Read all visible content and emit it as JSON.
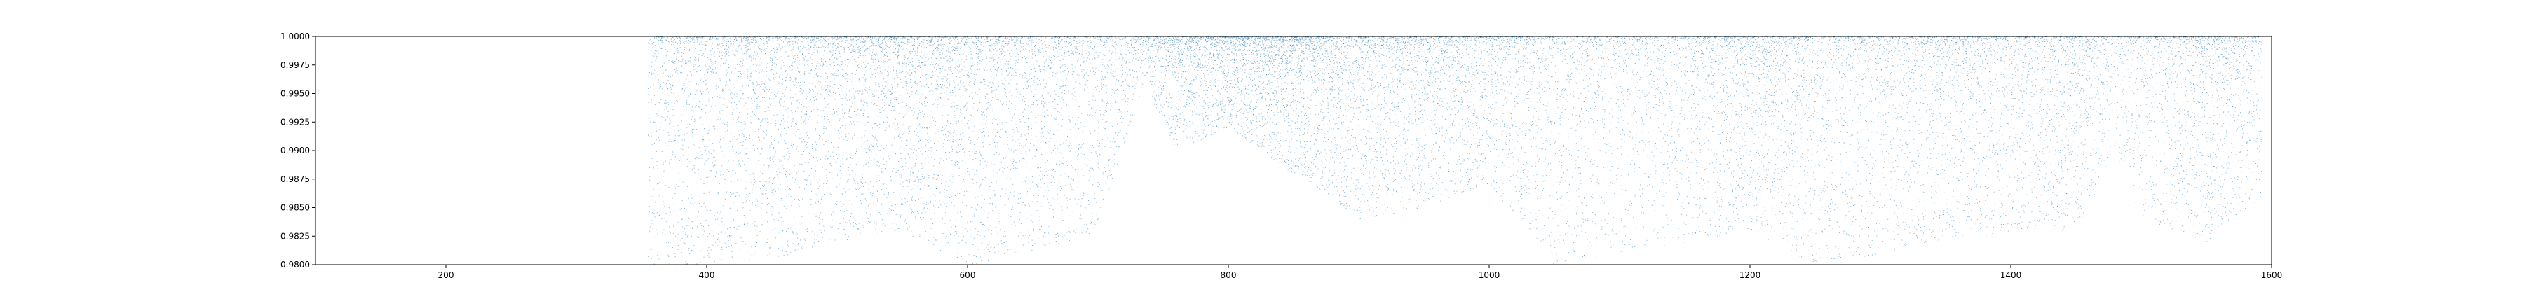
{
  "chart_data": {
    "type": "scatter",
    "title": "",
    "xlabel": "",
    "ylabel": "",
    "xlim": [
      100,
      1600
    ],
    "ylim": [
      0.98,
      1.0
    ],
    "x_ticks": [
      200,
      400,
      600,
      800,
      1000,
      1200,
      1400,
      1600
    ],
    "x_tick_labels": [
      "200",
      "400",
      "600",
      "800",
      "1000",
      "1200",
      "1400",
      "1600"
    ],
    "y_ticks": [
      0.98,
      0.9825,
      0.985,
      0.9875,
      0.99,
      0.9925,
      0.995,
      0.9975,
      1.0
    ],
    "y_tick_labels": [
      "0.9800",
      "0.9825",
      "0.9850",
      "0.9875",
      "0.9900",
      "0.9925",
      "0.9950",
      "0.9975",
      "1.0000"
    ],
    "grid": false,
    "legend": "none",
    "series": [
      {
        "color": "#1f77b4",
        "marker": "dot",
        "x_range": [
          355,
          1592
        ],
        "y_range": [
          0.98,
          1.0
        ],
        "density_profile": [
          {
            "x": 355,
            "density": 0.55,
            "ymin": 0.98
          },
          {
            "x": 400,
            "density": 0.7,
            "ymin": 0.98
          },
          {
            "x": 450,
            "density": 0.75,
            "ymin": 0.9805
          },
          {
            "x": 500,
            "density": 0.72,
            "ymin": 0.982
          },
          {
            "x": 550,
            "density": 0.85,
            "ymin": 0.983
          },
          {
            "x": 600,
            "density": 0.8,
            "ymin": 0.98
          },
          {
            "x": 650,
            "density": 0.65,
            "ymin": 0.981
          },
          {
            "x": 700,
            "density": 0.55,
            "ymin": 0.983
          },
          {
            "x": 735,
            "density": 0.3,
            "ymin": 0.996
          },
          {
            "x": 760,
            "density": 0.7,
            "ymin": 0.99
          },
          {
            "x": 800,
            "density": 0.85,
            "ymin": 0.992
          },
          {
            "x": 850,
            "density": 1.0,
            "ymin": 0.988
          },
          {
            "x": 900,
            "density": 0.8,
            "ymin": 0.984
          },
          {
            "x": 950,
            "density": 0.75,
            "ymin": 0.985
          },
          {
            "x": 1000,
            "density": 0.65,
            "ymin": 0.987
          },
          {
            "x": 1050,
            "density": 0.55,
            "ymin": 0.98
          },
          {
            "x": 1100,
            "density": 0.45,
            "ymin": 0.981
          },
          {
            "x": 1150,
            "density": 0.55,
            "ymin": 0.982
          },
          {
            "x": 1200,
            "density": 0.85,
            "ymin": 0.983
          },
          {
            "x": 1250,
            "density": 0.6,
            "ymin": 0.98
          },
          {
            "x": 1300,
            "density": 0.55,
            "ymin": 0.981
          },
          {
            "x": 1350,
            "density": 0.7,
            "ymin": 0.982
          },
          {
            "x": 1400,
            "density": 0.6,
            "ymin": 0.983
          },
          {
            "x": 1450,
            "density": 0.75,
            "ymin": 0.983
          },
          {
            "x": 1480,
            "density": 0.25,
            "ymin": 0.99
          },
          {
            "x": 1500,
            "density": 0.45,
            "ymin": 0.984
          },
          {
            "x": 1550,
            "density": 0.85,
            "ymin": 0.982
          },
          {
            "x": 1592,
            "density": 0.45,
            "ymin": 0.986
          }
        ]
      }
    ]
  }
}
